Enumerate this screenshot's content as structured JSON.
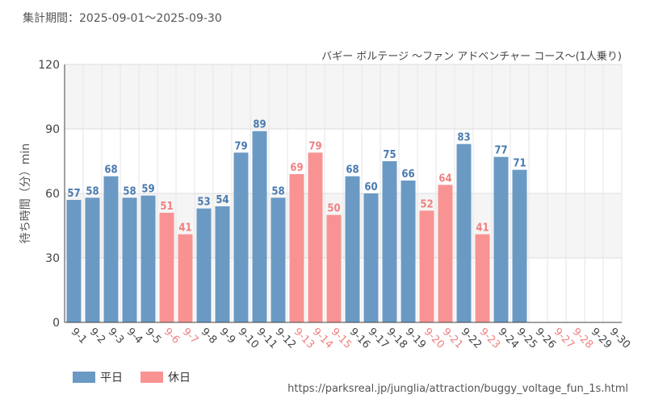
{
  "header": {
    "period": "集計期間：2025-09-01～2025-09-30"
  },
  "source_url": "https://parksreal.jp/junglia/attraction/buggy_voltage_fun_1s.html",
  "colors": {
    "weekday": "#6a9ac4",
    "holiday": "#f99393",
    "weekday_label": "#4a7aae",
    "holiday_label": "#f08080"
  },
  "chart_data": {
    "type": "bar",
    "title": "バギー ボルテージ ～ファン アドベンチャー コース～(1人乗り)",
    "ylabel": "待ち時間（分）min",
    "xlabel": "",
    "ylim": [
      0,
      120
    ],
    "yticks": [
      0,
      30,
      60,
      90,
      120
    ],
    "grid": true,
    "legend_position": "bottom-left",
    "legend": [
      {
        "name": "平日",
        "type": "weekday"
      },
      {
        "name": "休日",
        "type": "holiday"
      }
    ],
    "categories": [
      "9-1",
      "9-2",
      "9-3",
      "9-4",
      "9-5",
      "9-6",
      "9-7",
      "9-8",
      "9-9",
      "9-10",
      "9-11",
      "9-12",
      "9-13",
      "9-14",
      "9-15",
      "9-16",
      "9-17",
      "9-18",
      "9-19",
      "9-20",
      "9-21",
      "9-22",
      "9-23",
      "9-24",
      "9-25",
      "9-26",
      "9-27",
      "9-28",
      "9-29",
      "9-30"
    ],
    "day_types": [
      "weekday",
      "weekday",
      "weekday",
      "weekday",
      "weekday",
      "holiday",
      "holiday",
      "weekday",
      "weekday",
      "weekday",
      "weekday",
      "weekday",
      "holiday",
      "holiday",
      "holiday",
      "weekday",
      "weekday",
      "weekday",
      "weekday",
      "holiday",
      "holiday",
      "weekday",
      "holiday",
      "weekday",
      "weekday",
      "weekday",
      "holiday",
      "holiday",
      "weekday",
      "weekday"
    ],
    "values": [
      57,
      58,
      68,
      58,
      59,
      51,
      41,
      53,
      54,
      79,
      89,
      58,
      69,
      79,
      50,
      68,
      60,
      75,
      66,
      52,
      64,
      83,
      41,
      77,
      71,
      null,
      null,
      null,
      null,
      null
    ]
  }
}
